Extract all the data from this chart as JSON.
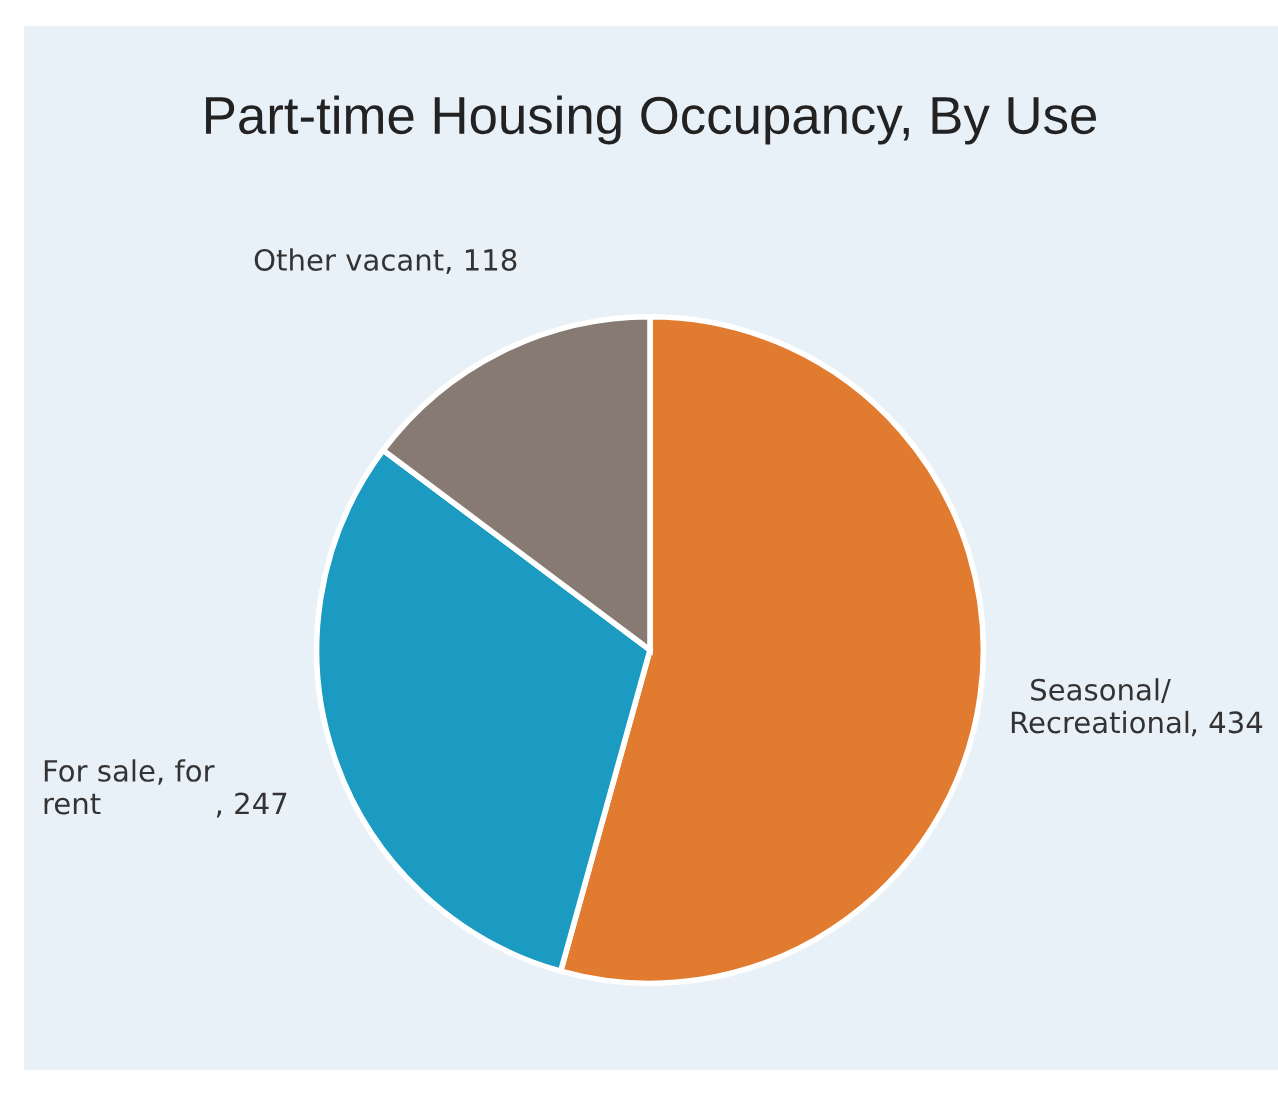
{
  "chart_data": {
    "type": "pie",
    "title": "Part-time Housing Occupancy, By Use",
    "categories": [
      "Seasonal/\nRecreational",
      "For sale, for\nrent",
      "Other vacant"
    ],
    "values": [
      434,
      247,
      118
    ],
    "colors": [
      "#e07b30",
      "#1b9bc1",
      "#867a73"
    ],
    "value_labels": [
      ", 434",
      ", 247",
      ", 118"
    ]
  }
}
